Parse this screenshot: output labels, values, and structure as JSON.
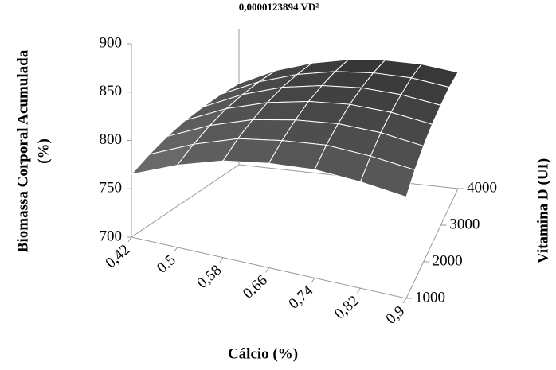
{
  "chart_data": {
    "type": "surface",
    "title": "0,0000123894 VD²",
    "x_label": "Cálcio (%)",
    "y_label": [
      "Biomassa Corporal Acumulada",
      "(%)"
    ],
    "z_label": "Vitamina D (UI)",
    "x": [
      0.42,
      0.5,
      0.58,
      0.66,
      0.74,
      0.82,
      0.9
    ],
    "z": [
      1000,
      1500,
      2000,
      2500,
      3000,
      3500,
      4000
    ],
    "values": [
      [
        765,
        785,
        800,
        808,
        812,
        810,
        805
      ],
      [
        777,
        798,
        814,
        822,
        827,
        825,
        820
      ],
      [
        788,
        810,
        826,
        835,
        840,
        839,
        833
      ],
      [
        798,
        821,
        837,
        847,
        852,
        851,
        845
      ],
      [
        806,
        830,
        847,
        857,
        862,
        861,
        855
      ],
      [
        814,
        838,
        855,
        866,
        871,
        871,
        865
      ],
      [
        820,
        845,
        862,
        873,
        878,
        878,
        872
      ]
    ],
    "xlim": [
      0.42,
      0.9
    ],
    "xticks": [
      {
        "value": 0.42,
        "label": "0,42"
      },
      {
        "value": 0.5,
        "label": "0,5"
      },
      {
        "value": 0.58,
        "label": "0,58"
      },
      {
        "value": 0.66,
        "label": "0,66"
      },
      {
        "value": 0.74,
        "label": "0,74"
      },
      {
        "value": 0.82,
        "label": "0,82"
      },
      {
        "value": 0.9,
        "label": "0,9"
      }
    ],
    "zlim": [
      1000,
      4000
    ],
    "zticks": [
      1000,
      2000,
      3000,
      4000
    ],
    "ylim": [
      700,
      900
    ],
    "yticks": [
      700,
      750,
      800,
      850,
      900
    ]
  }
}
